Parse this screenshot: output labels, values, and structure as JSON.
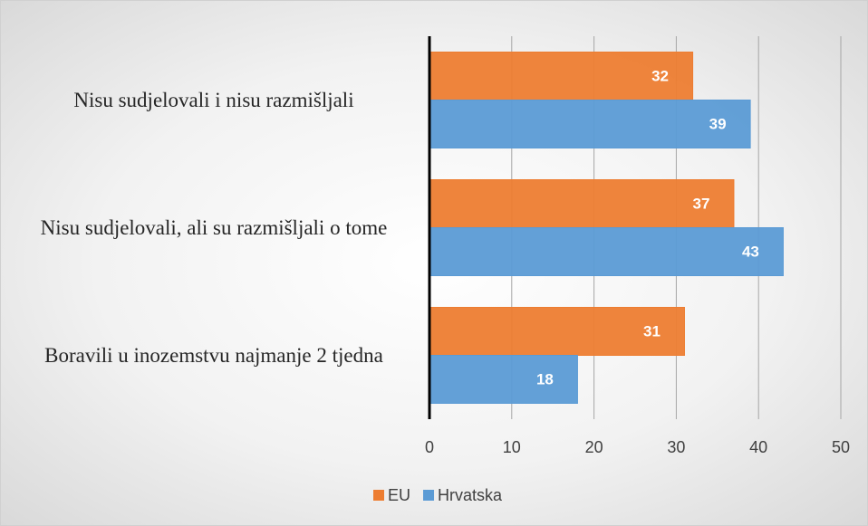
{
  "chart_data": {
    "type": "bar",
    "orientation": "horizontal",
    "categories": [
      "Nisu sudjelovali i nisu razmišljali",
      "Nisu sudjelovali, ali su razmišljali o tome",
      "Boravili u inozemstvu najmanje 2 tjedna"
    ],
    "series": [
      {
        "name": "EU",
        "color": "#ed7d31",
        "values": [
          32,
          37,
          31
        ]
      },
      {
        "name": "Hrvatska",
        "color": "#5b9bd5",
        "values": [
          39,
          43,
          18
        ]
      }
    ],
    "xlim": [
      0,
      50
    ],
    "xticks": [
      0,
      10,
      20,
      30,
      40,
      50
    ],
    "grid": true,
    "legend": "bottom"
  }
}
